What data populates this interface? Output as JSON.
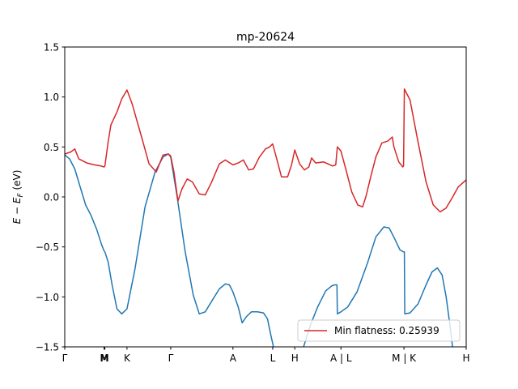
{
  "chart_data": {
    "type": "line",
    "title": "mp-20624",
    "xlabel": "",
    "ylabel": "E − E_F (eV)",
    "ylim": [
      -1.5,
      1.5
    ],
    "xlim": [
      0,
      1
    ],
    "yticks": [
      -1.5,
      -1.0,
      -0.5,
      0.0,
      0.5,
      1.0,
      1.5
    ],
    "ytick_labels": [
      "−1.5",
      "−1.0",
      "−0.5",
      "0.0",
      "0.5",
      "1.0",
      "1.5"
    ],
    "xticks": [
      {
        "label": "Γ",
        "x": 0.0
      },
      {
        "label": "M",
        "x": 0.098
      },
      {
        "label": "M",
        "x": 0.1
      },
      {
        "label": "K",
        "x": 0.155
      },
      {
        "label": "Γ",
        "x": 0.264
      },
      {
        "label": "A",
        "x": 0.419
      },
      {
        "label": "L",
        "x": 0.518
      },
      {
        "label": "H",
        "x": 0.573
      },
      {
        "label": "A | L",
        "x": 0.688
      },
      {
        "label": "M | K",
        "x": 0.845
      },
      {
        "label": "H",
        "x": 1.0
      }
    ],
    "grid": false,
    "legend": {
      "placement": "lower right",
      "entries": [
        "Min flatness: 0.25939"
      ]
    },
    "series": [
      {
        "name": "",
        "color": "#1f77b4",
        "points": [
          [
            0.0,
            0.42
          ],
          [
            0.012,
            0.38
          ],
          [
            0.025,
            0.28
          ],
          [
            0.04,
            0.08
          ],
          [
            0.052,
            -0.08
          ],
          [
            0.065,
            -0.18
          ],
          [
            0.08,
            -0.33
          ],
          [
            0.092,
            -0.48
          ],
          [
            0.098,
            -0.54
          ],
          [
            0.1,
            -0.55
          ],
          [
            0.108,
            -0.65
          ],
          [
            0.118,
            -0.88
          ],
          [
            0.13,
            -1.12
          ],
          [
            0.142,
            -1.17
          ],
          [
            0.155,
            -1.12
          ],
          [
            0.175,
            -0.72
          ],
          [
            0.2,
            -0.1
          ],
          [
            0.225,
            0.25
          ],
          [
            0.245,
            0.4
          ],
          [
            0.258,
            0.43
          ],
          [
            0.264,
            0.4
          ],
          [
            0.28,
            0.0
          ],
          [
            0.3,
            -0.55
          ],
          [
            0.32,
            -0.98
          ],
          [
            0.335,
            -1.17
          ],
          [
            0.35,
            -1.15
          ],
          [
            0.365,
            -1.05
          ],
          [
            0.385,
            -0.92
          ],
          [
            0.4,
            -0.87
          ],
          [
            0.41,
            -0.88
          ],
          [
            0.419,
            -0.95
          ],
          [
            0.432,
            -1.1
          ],
          [
            0.442,
            -1.26
          ],
          [
            0.452,
            -1.2
          ],
          [
            0.465,
            -1.15
          ],
          [
            0.48,
            -1.15
          ],
          [
            0.495,
            -1.16
          ],
          [
            0.505,
            -1.22
          ],
          [
            0.512,
            -1.36
          ],
          [
            0.52,
            -1.5
          ]
        ]
      },
      {
        "name": "",
        "color": "#1f77b4",
        "points": [
          [
            0.595,
            -1.5
          ],
          [
            0.612,
            -1.28
          ],
          [
            0.63,
            -1.1
          ],
          [
            0.65,
            -0.94
          ],
          [
            0.665,
            -0.89
          ],
          [
            0.672,
            -0.88
          ],
          [
            0.678,
            -0.88
          ],
          [
            0.679,
            -1.17
          ],
          [
            0.688,
            -1.15
          ],
          [
            0.705,
            -1.1
          ],
          [
            0.728,
            -0.95
          ],
          [
            0.755,
            -0.65
          ],
          [
            0.775,
            -0.4
          ],
          [
            0.795,
            -0.3
          ],
          [
            0.808,
            -0.31
          ],
          [
            0.822,
            -0.42
          ],
          [
            0.835,
            -0.53
          ],
          [
            0.844,
            -0.55
          ],
          [
            0.846,
            -0.55
          ],
          [
            0.847,
            -1.17
          ],
          [
            0.86,
            -1.16
          ],
          [
            0.88,
            -1.07
          ],
          [
            0.9,
            -0.88
          ],
          [
            0.915,
            -0.75
          ],
          [
            0.928,
            -0.71
          ],
          [
            0.94,
            -0.78
          ],
          [
            0.95,
            -1.0
          ],
          [
            0.96,
            -1.3
          ],
          [
            0.966,
            -1.5
          ]
        ]
      },
      {
        "name": "Min flatness: 0.25939",
        "color": "#d62728",
        "points": [
          [
            0.0,
            0.43
          ],
          [
            0.015,
            0.45
          ],
          [
            0.025,
            0.48
          ],
          [
            0.035,
            0.38
          ],
          [
            0.055,
            0.34
          ],
          [
            0.075,
            0.32
          ],
          [
            0.09,
            0.31
          ],
          [
            0.098,
            0.3
          ],
          [
            0.1,
            0.31
          ],
          [
            0.108,
            0.55
          ],
          [
            0.115,
            0.72
          ],
          [
            0.13,
            0.85
          ],
          [
            0.142,
            0.98
          ],
          [
            0.155,
            1.07
          ],
          [
            0.168,
            0.93
          ],
          [
            0.19,
            0.62
          ],
          [
            0.21,
            0.33
          ],
          [
            0.228,
            0.25
          ],
          [
            0.245,
            0.42
          ],
          [
            0.258,
            0.43
          ],
          [
            0.264,
            0.41
          ],
          [
            0.272,
            0.25
          ],
          [
            0.282,
            -0.04
          ],
          [
            0.292,
            0.08
          ],
          [
            0.305,
            0.18
          ],
          [
            0.318,
            0.15
          ],
          [
            0.335,
            0.03
          ],
          [
            0.35,
            0.02
          ],
          [
            0.365,
            0.14
          ],
          [
            0.385,
            0.33
          ],
          [
            0.4,
            0.37
          ],
          [
            0.419,
            0.32
          ],
          [
            0.432,
            0.34
          ],
          [
            0.445,
            0.37
          ],
          [
            0.458,
            0.27
          ],
          [
            0.47,
            0.28
          ],
          [
            0.485,
            0.4
          ],
          [
            0.5,
            0.48
          ],
          [
            0.51,
            0.5
          ],
          [
            0.518,
            0.53
          ],
          [
            0.528,
            0.38
          ],
          [
            0.54,
            0.2
          ],
          [
            0.555,
            0.2
          ],
          [
            0.565,
            0.32
          ],
          [
            0.573,
            0.47
          ],
          [
            0.585,
            0.33
          ],
          [
            0.597,
            0.27
          ],
          [
            0.608,
            0.3
          ],
          [
            0.615,
            0.39
          ],
          [
            0.625,
            0.34
          ],
          [
            0.645,
            0.35
          ],
          [
            0.667,
            0.31
          ],
          [
            0.675,
            0.32
          ],
          [
            0.679,
            0.5
          ],
          [
            0.688,
            0.46
          ],
          [
            0.7,
            0.28
          ],
          [
            0.715,
            0.05
          ],
          [
            0.73,
            -0.08
          ],
          [
            0.742,
            -0.1
          ],
          [
            0.75,
            0.0
          ],
          [
            0.762,
            0.2
          ],
          [
            0.775,
            0.4
          ],
          [
            0.79,
            0.54
          ],
          [
            0.805,
            0.56
          ],
          [
            0.816,
            0.6
          ],
          [
            0.82,
            0.5
          ],
          [
            0.832,
            0.35
          ],
          [
            0.842,
            0.3
          ],
          [
            0.844,
            0.31
          ],
          [
            0.846,
            1.08
          ],
          [
            0.86,
            0.97
          ],
          [
            0.88,
            0.55
          ],
          [
            0.9,
            0.15
          ],
          [
            0.918,
            -0.08
          ],
          [
            0.935,
            -0.15
          ],
          [
            0.95,
            -0.11
          ],
          [
            0.965,
            -0.01
          ],
          [
            0.98,
            0.1
          ],
          [
            1.0,
            0.17
          ]
        ]
      }
    ]
  }
}
